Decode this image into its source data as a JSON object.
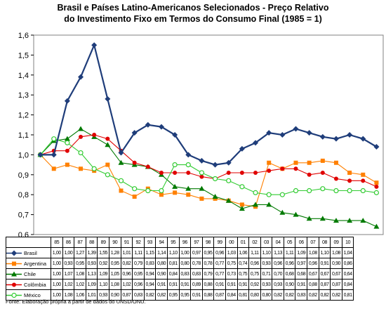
{
  "title_line1": "Brasil e Países Latino-Americanos Selecionados - Preço Relativo",
  "title_line2": "do Investimento Fixo em Termos do Consumo Final (1985 = 1)",
  "source": "Fonte: Elaboração própria a partir de dados do UNSD/ONU.",
  "chart_data": {
    "type": "line",
    "title": "Brasil e Países Latino-Americanos Selecionados - Preço Relativo do Investimento Fixo em Termos do Consumo Final (1985 = 1)",
    "ylim": [
      0.6,
      1.6
    ],
    "yticks": [
      "0,6",
      "0,7",
      "0,8",
      "0,9",
      "1,0",
      "1,1",
      "1,2",
      "1,3",
      "1,4",
      "1,5",
      "1,6"
    ],
    "grid": false,
    "legend": "data-table-below",
    "categories": [
      "85",
      "86",
      "87",
      "88",
      "89",
      "90",
      "91",
      "92",
      "93",
      "94",
      "95",
      "96",
      "97",
      "98",
      "99",
      "00",
      "01",
      "02",
      "03",
      "04",
      "05",
      "06",
      "07",
      "08",
      "09",
      "10"
    ],
    "series": [
      {
        "name": "Brasil",
        "color": "#1f3d7a",
        "marker": "diamond",
        "values": [
          1.0,
          1.0,
          1.27,
          1.39,
          1.55,
          1.28,
          1.01,
          1.11,
          1.15,
          1.14,
          1.1,
          1.0,
          0.97,
          0.95,
          0.96,
          1.03,
          1.06,
          1.11,
          1.1,
          1.13,
          1.11,
          1.09,
          1.08,
          1.1,
          1.08,
          1.04
        ],
        "labels": [
          "1,00",
          "1,00",
          "1,27",
          "1,39",
          "1,55",
          "1,28",
          "1,01",
          "1,11",
          "1,15",
          "1,14",
          "1,10",
          "1,00",
          "0,97",
          "0,95",
          "0,96",
          "1,03",
          "1,06",
          "1,11",
          "1,10",
          "1,13",
          "1,11",
          "1,09",
          "1,08",
          "1,10",
          "1,08",
          "1,04"
        ]
      },
      {
        "name": "Argentina",
        "color": "#ff8000",
        "marker": "square",
        "values": [
          1.0,
          0.93,
          0.95,
          0.93,
          0.92,
          0.95,
          0.82,
          0.79,
          0.83,
          0.8,
          0.81,
          0.8,
          0.78,
          0.78,
          0.77,
          0.75,
          0.74,
          0.96,
          0.93,
          0.96,
          0.96,
          0.97,
          0.96,
          0.91,
          0.9,
          0.86
        ],
        "labels": [
          "1,00",
          "0,93",
          "0,95",
          "0,93",
          "0,92",
          "0,95",
          "0,82",
          "0,79",
          "0,83",
          "0,80",
          "0,81",
          "0,80",
          "0,78",
          "0,78",
          "0,77",
          "0,75",
          "0,74",
          "0,96",
          "0,93",
          "0,96",
          "0,96",
          "0,97",
          "0,96",
          "0,91",
          "0,90",
          "0,86"
        ]
      },
      {
        "name": "Chile",
        "color": "#007a00",
        "marker": "triangle",
        "values": [
          1.0,
          1.07,
          1.08,
          1.13,
          1.09,
          1.05,
          0.96,
          0.95,
          0.94,
          0.9,
          0.84,
          0.83,
          0.83,
          0.79,
          0.77,
          0.73,
          0.75,
          0.75,
          0.71,
          0.7,
          0.68,
          0.68,
          0.67,
          0.67,
          0.67,
          0.64
        ],
        "labels": [
          "1,00",
          "1,07",
          "1,08",
          "1,13",
          "1,09",
          "1,05",
          "0,96",
          "0,95",
          "0,94",
          "0,90",
          "0,84",
          "0,83",
          "0,83",
          "0,79",
          "0,77",
          "0,73",
          "0,75",
          "0,75",
          "0,71",
          "0,70",
          "0,68",
          "0,68",
          "0,67",
          "0,67",
          "0,67",
          "0,64"
        ]
      },
      {
        "name": "Colômbia",
        "color": "#e00000",
        "marker": "circle",
        "values": [
          1.0,
          1.02,
          1.02,
          1.09,
          1.1,
          1.08,
          1.02,
          0.96,
          0.94,
          0.91,
          0.91,
          0.91,
          0.89,
          0.88,
          0.91,
          0.91,
          0.91,
          0.92,
          0.93,
          0.93,
          0.9,
          0.91,
          0.88,
          0.87,
          0.87,
          0.84
        ],
        "labels": [
          "1,00",
          "1,02",
          "1,02",
          "1,09",
          "1,10",
          "1,08",
          "1,02",
          "0,96",
          "0,94",
          "0,91",
          "0,91",
          "0,91",
          "0,89",
          "0,88",
          "0,91",
          "0,91",
          "0,91",
          "0,92",
          "0,93",
          "0,93",
          "0,90",
          "0,91",
          "0,88",
          "0,87",
          "0,87",
          "0,84"
        ]
      },
      {
        "name": "México",
        "color": "#33cc33",
        "marker": "open-circle",
        "values": [
          1.0,
          1.08,
          1.06,
          1.01,
          0.93,
          0.9,
          0.87,
          0.83,
          0.82,
          0.82,
          0.95,
          0.95,
          0.91,
          0.88,
          0.87,
          0.84,
          0.81,
          0.8,
          0.8,
          0.82,
          0.82,
          0.83,
          0.82,
          0.82,
          0.82,
          0.81
        ],
        "labels": [
          "1,00",
          "1,08",
          "1,06",
          "1,01",
          "0,93",
          "0,90",
          "0,87",
          "0,83",
          "0,82",
          "0,82",
          "0,95",
          "0,95",
          "0,91",
          "0,88",
          "0,87",
          "0,84",
          "0,81",
          "0,80",
          "0,80",
          "0,82",
          "0,82",
          "0,83",
          "0,82",
          "0,82",
          "0,82",
          "0,81"
        ]
      }
    ]
  }
}
